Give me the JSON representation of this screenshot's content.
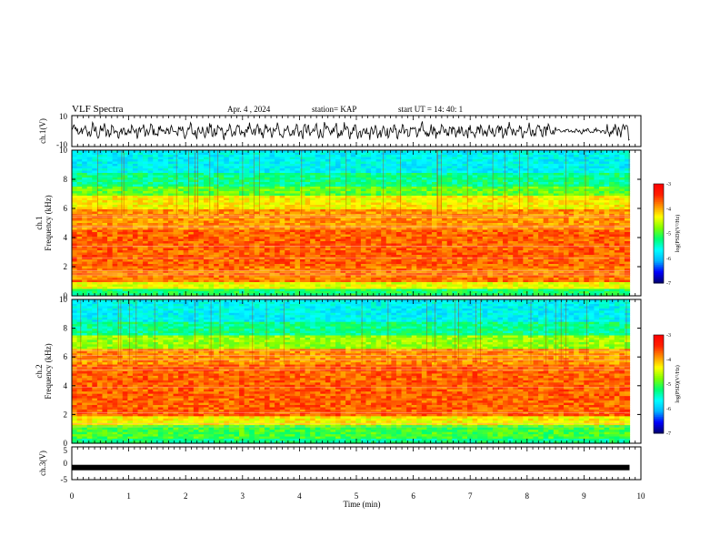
{
  "header": {
    "title": "VLF Spectra",
    "date": "Apr. 4 , 2024",
    "station": "station= KAP",
    "start_ut": "start UT = 14: 40: 1"
  },
  "chart_data": [
    {
      "type": "line",
      "name": "ch1-waveform",
      "ylabel": "ch.1(V)",
      "ylim": [
        -10,
        10
      ],
      "yticks": [
        "10",
        "-10"
      ],
      "xlim": [
        0,
        10
      ],
      "note_series": "noisy waveform oscillating roughly between -6 and +6 V from 0 to ~9.8 min, quieter (about ±2 V) near 8.6–9.3 min"
    },
    {
      "type": "heatmap",
      "name": "ch1-spectrogram",
      "ylabel": "ch.1\nFrequency (kHz)",
      "ylabel_line1": "ch.1",
      "ylabel_line2": "Frequency (kHz)",
      "ylim": [
        0,
        10
      ],
      "yticks": [
        "0",
        "2",
        "4",
        "6",
        "8",
        "10"
      ],
      "xlim": [
        0,
        9.8
      ],
      "bands": [
        {
          "from": 0.0,
          "to": 0.4,
          "level": -5.2
        },
        {
          "from": 0.4,
          "to": 0.9,
          "level": -4.4
        },
        {
          "from": 0.9,
          "to": 2.0,
          "level": -3.8
        },
        {
          "from": 2.0,
          "to": 4.5,
          "level": -3.7
        },
        {
          "from": 4.5,
          "to": 6.0,
          "level": -3.9
        },
        {
          "from": 6.0,
          "to": 6.8,
          "level": -4.3
        },
        {
          "from": 6.8,
          "to": 7.5,
          "level": -4.9
        },
        {
          "from": 7.5,
          "to": 8.5,
          "level": -5.3
        },
        {
          "from": 8.5,
          "to": 10.0,
          "level": -5.7
        }
      ],
      "colorbar": {
        "min": -7,
        "max": -3,
        "ticks": [
          "-3",
          "-4",
          "-5",
          "-6",
          "-7"
        ],
        "label": "log(PSD)(V²/Hz)"
      }
    },
    {
      "type": "heatmap",
      "name": "ch2-spectrogram",
      "ylabel_line1": "ch.2",
      "ylabel_line2": "Frequency (kHz)",
      "ylim": [
        0,
        10
      ],
      "yticks": [
        "0",
        "2",
        "4",
        "6",
        "8",
        "10"
      ],
      "xlim": [
        0,
        9.8
      ],
      "bands": [
        {
          "from": 0.0,
          "to": 0.3,
          "level": -5.3
        },
        {
          "from": 0.3,
          "to": 1.2,
          "level": -5.0
        },
        {
          "from": 1.2,
          "to": 1.8,
          "level": -4.3
        },
        {
          "from": 1.8,
          "to": 5.5,
          "level": -3.7
        },
        {
          "from": 5.5,
          "to": 6.5,
          "level": -3.9
        },
        {
          "from": 6.5,
          "to": 7.5,
          "level": -4.7
        },
        {
          "from": 7.5,
          "to": 8.5,
          "level": -5.3
        },
        {
          "from": 8.5,
          "to": 10.0,
          "level": -5.7
        }
      ],
      "colorbar": {
        "min": -7,
        "max": -3,
        "ticks": [
          "-3",
          "-4",
          "-5",
          "-6",
          "-7"
        ],
        "label": "log(PSD)(V²/Hz)"
      }
    },
    {
      "type": "line",
      "name": "ch3-waveform",
      "ylabel": "ch.3(V)",
      "ylim": [
        -5,
        5
      ],
      "yticks": [
        "5",
        "0",
        "-5"
      ],
      "xlim": [
        0,
        10
      ],
      "level_volts": -1.3
    }
  ],
  "xaxis": {
    "label": "Time (min)",
    "ticks": [
      "0",
      "1",
      "2",
      "3",
      "4",
      "5",
      "6",
      "7",
      "8",
      "9",
      "10"
    ]
  },
  "colors": {
    "colormap": [
      "#000070",
      "#0000ff",
      "#00b4ff",
      "#00ffff",
      "#00ff70",
      "#80ff00",
      "#ffff00",
      "#ff9000",
      "#ff2000",
      "#ff0000",
      "#ffffff"
    ]
  }
}
